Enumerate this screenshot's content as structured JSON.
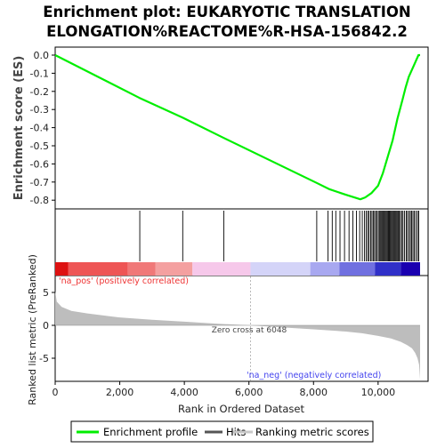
{
  "title": {
    "line1": "Enrichment plot: EUKARYOTIC TRANSLATION",
    "line2": "ELONGATION%REACTOME%R-HSA-156842.2"
  },
  "es_panel": {
    "ylabel": "Enrichment score (ES)",
    "yticks": [
      "0.0",
      "-0.1",
      "-0.2",
      "-0.3",
      "-0.4",
      "-0.5",
      "-0.6",
      "-0.7",
      "-0.8"
    ]
  },
  "metric_panel": {
    "ylabel": "Ranked list metric (PreRanked)",
    "yticks": [
      "5",
      "0",
      "-5"
    ],
    "pos_label": "'na_pos' (positively correlated)",
    "neg_label": "'na_neg' (negatively correlated)",
    "zero_cross_label": "Zero cross at 6048"
  },
  "xaxis": {
    "xlabel": "Rank in Ordered Dataset",
    "xticks": [
      "0",
      "2,000",
      "4,000",
      "6,000",
      "8,000",
      "10,000"
    ]
  },
  "legend": {
    "items": [
      {
        "label": "Enrichment profile",
        "color": "#00ee00"
      },
      {
        "label": "Hits",
        "color": "#555555"
      },
      {
        "label": "Ranking metric scores",
        "color": "#c8c8c8"
      }
    ]
  },
  "colors": {
    "es_line": "#00ee00",
    "hit": "#000000",
    "metric_fill": "#bdbdbd",
    "pos_text": "#ee3333",
    "neg_text": "#4444ee"
  },
  "chart_data": {
    "type": "line",
    "x_range": [
      0,
      11300
    ],
    "n_genes": 11300,
    "zero_cross": 6048,
    "es_ylim": [
      -0.85,
      0.03
    ],
    "metric_ylim": [
      -8.5,
      7.5
    ],
    "es_curve": {
      "x": [
        0,
        2600,
        3950,
        5200,
        8100,
        8500,
        9000,
        9450,
        9600,
        9800,
        10000,
        10150,
        10300,
        10450,
        10600,
        10750,
        10850,
        10950,
        11050,
        11150,
        11250,
        11300
      ],
      "y": [
        0.0,
        -0.235,
        -0.345,
        -0.455,
        -0.705,
        -0.74,
        -0.77,
        -0.795,
        -0.785,
        -0.76,
        -0.72,
        -0.65,
        -0.56,
        -0.47,
        -0.35,
        -0.25,
        -0.18,
        -0.12,
        -0.08,
        -0.04,
        0.0,
        0.0
      ]
    },
    "hits": [
      2620,
      3950,
      5220,
      8100,
      8450,
      8580,
      8690,
      8820,
      8960,
      9100,
      9220,
      9330,
      9430,
      9510,
      9580,
      9630,
      9680,
      9720,
      9770,
      9810,
      9850,
      9890,
      9930,
      9970,
      10010,
      10050,
      10080,
      10110,
      10140,
      10170,
      10200,
      10230,
      10260,
      10290,
      10320,
      10350,
      10380,
      10410,
      10440,
      10470,
      10500,
      10530,
      10560,
      10590,
      10620,
      10650,
      10690,
      10730,
      10770,
      10820,
      10870,
      10910,
      10960,
      11000,
      11040,
      11080,
      11120,
      11170,
      11220,
      11260
    ],
    "metric_profile": {
      "x": [
        0,
        50,
        200,
        500,
        1000,
        2000,
        3000,
        4000,
        5000,
        6048,
        7000,
        8000,
        9000,
        9500,
        10000,
        10400,
        10700,
        10900,
        11050,
        11150,
        11220,
        11270,
        11300
      ],
      "y": [
        5.2,
        3.6,
        2.8,
        2.2,
        1.8,
        1.2,
        0.85,
        0.55,
        0.25,
        0.0,
        -0.3,
        -0.6,
        -0.95,
        -1.2,
        -1.6,
        -2.0,
        -2.5,
        -3.0,
        -3.5,
        -4.2,
        -5.0,
        -6.0,
        -8.2
      ]
    },
    "heatmap_bands": [
      {
        "x0": 0,
        "x1": 400,
        "color": "#dd1111"
      },
      {
        "x0": 400,
        "x1": 2250,
        "color": "#ee5555"
      },
      {
        "x0": 2250,
        "x1": 3100,
        "color": "#f07878"
      },
      {
        "x0": 3100,
        "x1": 4250,
        "color": "#f4a0a0"
      },
      {
        "x0": 4250,
        "x1": 6048,
        "color": "#f6c8ea"
      },
      {
        "x0": 6048,
        "x1": 7900,
        "color": "#d4d4f8"
      },
      {
        "x0": 7900,
        "x1": 8800,
        "color": "#a8a8f0"
      },
      {
        "x0": 8800,
        "x1": 9900,
        "color": "#7070e0"
      },
      {
        "x0": 9900,
        "x1": 10700,
        "color": "#3030c8"
      },
      {
        "x0": 10700,
        "x1": 11300,
        "color": "#1a00b0"
      }
    ]
  }
}
